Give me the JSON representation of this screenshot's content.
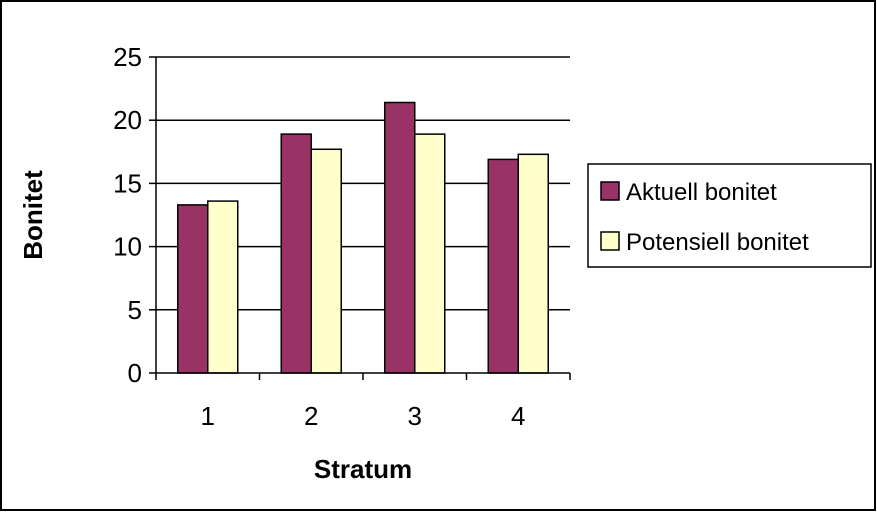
{
  "chart_data": {
    "type": "bar",
    "title": "",
    "xlabel": "Stratum",
    "ylabel": "Bonitet",
    "categories": [
      "1",
      "2",
      "3",
      "4"
    ],
    "series": [
      {
        "name": "Aktuell bonitet",
        "values": [
          13.3,
          18.9,
          21.4,
          16.9
        ],
        "color": "#993366"
      },
      {
        "name": "Potensiell bonitet",
        "values": [
          13.6,
          17.7,
          18.9,
          17.3
        ],
        "color": "#FFFFCC"
      }
    ],
    "ylim": [
      0,
      25
    ],
    "yticks": [
      "0",
      "5",
      "10",
      "15",
      "20",
      "25"
    ],
    "grid": true,
    "legend": "right"
  }
}
